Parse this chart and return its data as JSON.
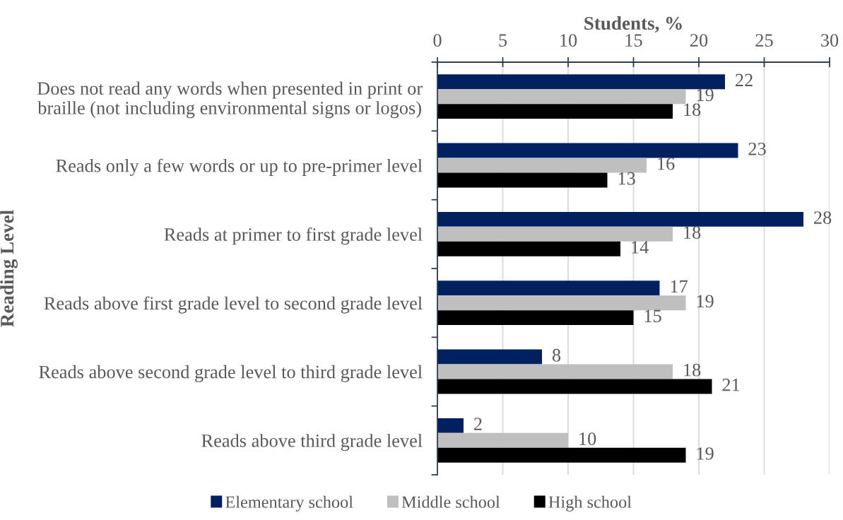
{
  "chart_data": {
    "type": "bar",
    "orientation": "horizontal",
    "xlabel": "Students, %",
    "ylabel": "Reading Level",
    "categories": [
      "Does not read any words when presented in print or\nbraille (not including environmental signs or logos)",
      "Reads only a few words or up to pre-primer level",
      "Reads at primer to first grade level",
      "Reads above first grade level to second grade level",
      "Reads above second grade level to third grade level",
      "Reads above third grade level"
    ],
    "series": [
      {
        "name": "Elementary school",
        "color": "#002060",
        "values": [
          22,
          23,
          28,
          17,
          8,
          2
        ]
      },
      {
        "name": "Middle school",
        "color": "#bfbfbf",
        "values": [
          19,
          16,
          18,
          19,
          18,
          10
        ]
      },
      {
        "name": "High school",
        "color": "#000000",
        "values": [
          18,
          13,
          14,
          15,
          21,
          19
        ]
      }
    ],
    "xlim": [
      0,
      30
    ],
    "xticks": [
      0,
      5,
      10,
      15,
      20,
      25,
      30
    ],
    "grid": "x",
    "legend": "bottom",
    "data_labels": true
  }
}
